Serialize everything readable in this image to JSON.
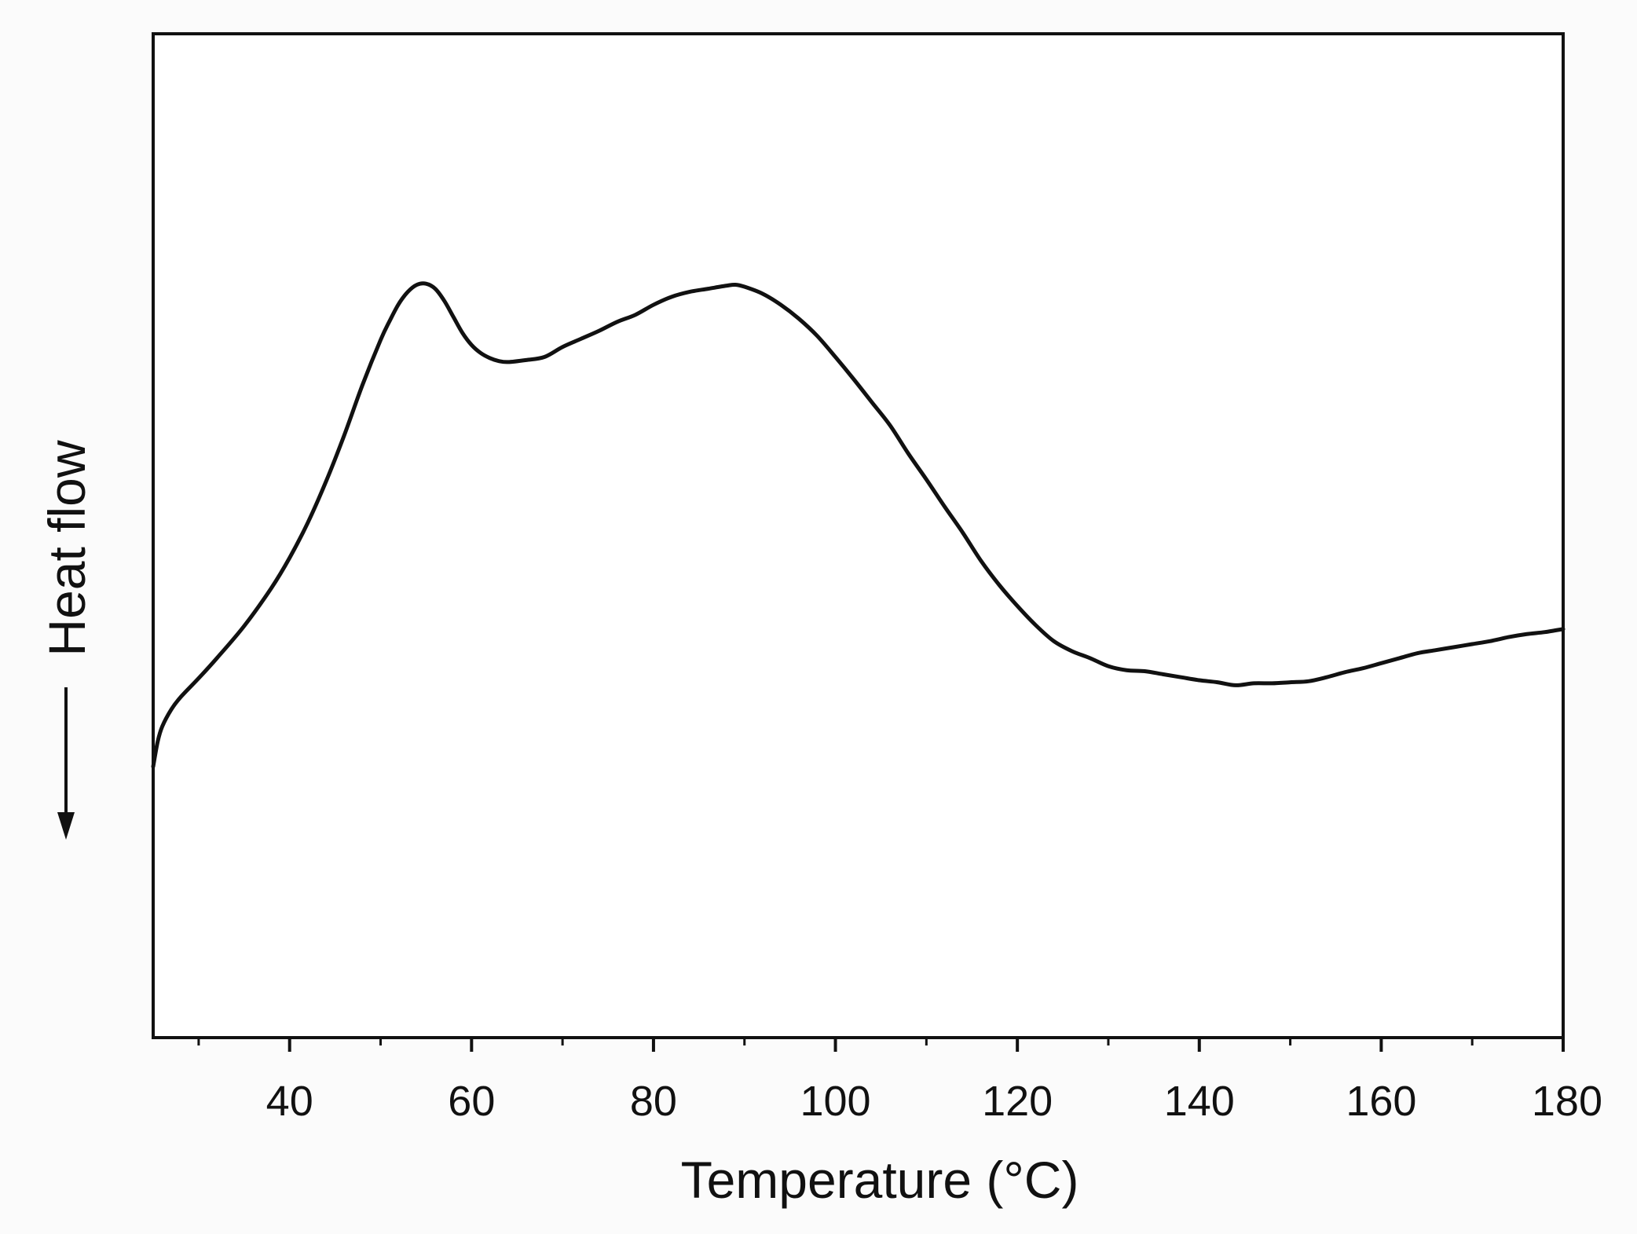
{
  "chart_data": {
    "type": "line",
    "title": "",
    "xlabel": "Temperature (°C)",
    "ylabel": "Heat flow",
    "xlim": [
      25,
      180
    ],
    "ylim": [
      0,
      100
    ],
    "x_ticks": [
      40,
      60,
      80,
      100,
      120,
      140,
      160,
      180
    ],
    "x_minor_tick_step": 10,
    "grid": false,
    "legend": "none",
    "line_color": "#111111",
    "y_arrow_direction": "down",
    "series": [
      {
        "x": [
          25,
          25.5,
          26,
          27,
          28,
          30,
          32,
          35,
          38,
          40,
          42,
          44,
          46,
          48,
          50,
          51,
          52,
          53,
          54,
          55,
          56,
          57,
          58,
          59,
          60,
          61,
          62,
          63,
          64,
          66,
          68,
          70,
          72,
          74,
          76,
          78,
          80,
          82,
          84,
          86,
          88,
          89,
          90,
          92,
          94,
          96,
          98,
          100,
          102,
          104,
          106,
          108,
          110,
          112,
          114,
          116,
          118,
          120,
          122,
          124,
          126,
          128,
          130,
          132,
          134,
          136,
          138,
          140,
          142,
          144,
          146,
          148,
          150,
          152,
          154,
          156,
          158,
          160,
          162,
          164,
          166,
          168,
          170,
          172,
          174,
          176,
          178,
          180
        ],
        "y": [
          27,
          29.5,
          31,
          32.7,
          33.9,
          35.8,
          37.8,
          41,
          44.8,
          47.8,
          51.3,
          55.4,
          60,
          65,
          69.5,
          71.4,
          73.1,
          74.3,
          75,
          75.1,
          74.6,
          73.4,
          71.8,
          70.2,
          69,
          68.2,
          67.7,
          67.4,
          67.3,
          67.5,
          67.8,
          68.8,
          69.6,
          70.4,
          71.3,
          72,
          73,
          73.8,
          74.3,
          74.6,
          74.9,
          75,
          74.8,
          74.1,
          73,
          71.6,
          69.9,
          67.8,
          65.6,
          63.3,
          61,
          58.2,
          55.6,
          52.9,
          50.3,
          47.5,
          45.1,
          43,
          41.1,
          39.5,
          38.5,
          37.8,
          37,
          36.6,
          36.5,
          36.2,
          35.9,
          35.6,
          35.4,
          35.1,
          35.3,
          35.3,
          35.4,
          35.5,
          35.9,
          36.4,
          36.8,
          37.3,
          37.8,
          38.3,
          38.6,
          38.9,
          39.2,
          39.5,
          39.9,
          40.2,
          40.4,
          40.7
        ]
      }
    ]
  }
}
